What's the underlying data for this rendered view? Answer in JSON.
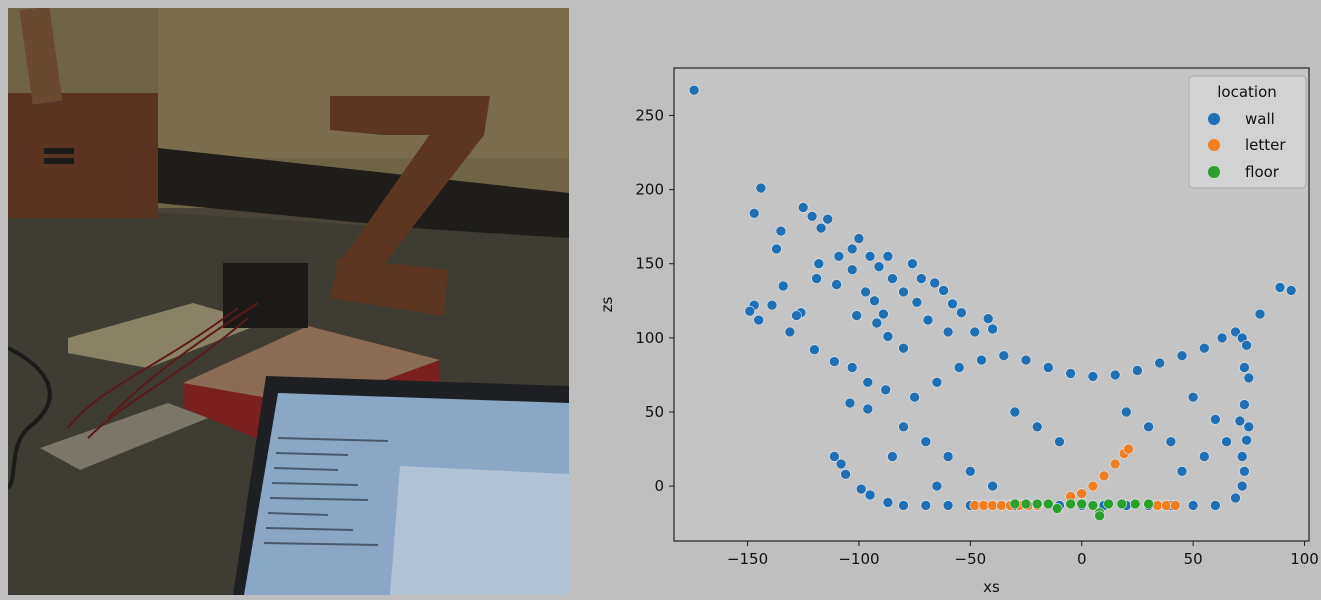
{
  "chart_data": {
    "type": "scatter",
    "xlabel": "xs",
    "ylabel": "zs",
    "xlim": [
      -183,
      102
    ],
    "ylim": [
      -37,
      282
    ],
    "x_ticks": [
      "−150",
      "−100",
      "−50",
      "0",
      "50",
      "100"
    ],
    "y_ticks": [
      "0",
      "50",
      "100",
      "150",
      "200",
      "250"
    ],
    "legend": {
      "title": "location",
      "position": "top-right",
      "entries": [
        "wall",
        "letter",
        "floor"
      ]
    },
    "colors": {
      "wall": "#1f6fb4",
      "letter": "#ef7f22",
      "floor": "#2aa02c"
    },
    "series": [
      {
        "name": "wall",
        "points": [
          [
            -174,
            267
          ],
          [
            -144,
            201
          ],
          [
            -147,
            184
          ],
          [
            -125,
            188
          ],
          [
            -121,
            182
          ],
          [
            -114,
            180
          ],
          [
            -135,
            172
          ],
          [
            -117,
            174
          ],
          [
            -100,
            167
          ],
          [
            -137,
            160
          ],
          [
            -103,
            160
          ],
          [
            -95,
            155
          ],
          [
            -118,
            150
          ],
          [
            -109,
            155
          ],
          [
            -87,
            155
          ],
          [
            -91,
            148
          ],
          [
            -76,
            150
          ],
          [
            -103,
            146
          ],
          [
            -119,
            140
          ],
          [
            -110,
            136
          ],
          [
            -85,
            140
          ],
          [
            -72,
            140
          ],
          [
            -134,
            135
          ],
          [
            -66,
            137
          ],
          [
            -97,
            131
          ],
          [
            -80,
            131
          ],
          [
            -62,
            132
          ],
          [
            -147,
            122
          ],
          [
            -139,
            122
          ],
          [
            -126,
            117
          ],
          [
            -93,
            125
          ],
          [
            -74,
            124
          ],
          [
            -58,
            123
          ],
          [
            -149,
            118
          ],
          [
            -145,
            112
          ],
          [
            -128,
            115
          ],
          [
            -101,
            115
          ],
          [
            -89,
            116
          ],
          [
            -54,
            117
          ],
          [
            -42,
            113
          ],
          [
            -92,
            110
          ],
          [
            -69,
            112
          ],
          [
            -131,
            104
          ],
          [
            -87,
            101
          ],
          [
            -60,
            104
          ],
          [
            -48,
            104
          ],
          [
            -40,
            106
          ],
          [
            -120,
            92
          ],
          [
            -80,
            93
          ],
          [
            -111,
            84
          ],
          [
            -103,
            80
          ],
          [
            -96,
            70
          ],
          [
            -88,
            65
          ],
          [
            -104,
            56
          ],
          [
            -96,
            52
          ],
          [
            -111,
            20
          ],
          [
            -108,
            15
          ],
          [
            -106,
            8
          ],
          [
            -99,
            -2
          ],
          [
            -95,
            -6
          ],
          [
            -87,
            -11
          ],
          [
            -80,
            -13
          ],
          [
            -70,
            -13
          ],
          [
            -60,
            -13
          ],
          [
            -50,
            -13
          ],
          [
            -40,
            -13
          ],
          [
            -30,
            -13
          ],
          [
            -20,
            -13
          ],
          [
            -10,
            -13
          ],
          [
            0,
            -13
          ],
          [
            10,
            -13
          ],
          [
            20,
            -13
          ],
          [
            30,
            -13
          ],
          [
            40,
            -13
          ],
          [
            50,
            -13
          ],
          [
            60,
            -13
          ],
          [
            -75,
            60
          ],
          [
            -65,
            70
          ],
          [
            -55,
            80
          ],
          [
            -45,
            85
          ],
          [
            -35,
            88
          ],
          [
            -25,
            85
          ],
          [
            -15,
            80
          ],
          [
            -5,
            76
          ],
          [
            5,
            74
          ],
          [
            15,
            75
          ],
          [
            25,
            78
          ],
          [
            35,
            83
          ],
          [
            45,
            88
          ],
          [
            55,
            93
          ],
          [
            63,
            100
          ],
          [
            69,
            104
          ],
          [
            72,
            100
          ],
          [
            74,
            95
          ],
          [
            73,
            80
          ],
          [
            75,
            73
          ],
          [
            73,
            55
          ],
          [
            71,
            44
          ],
          [
            75,
            40
          ],
          [
            74,
            31
          ],
          [
            72,
            20
          ],
          [
            73,
            10
          ],
          [
            72,
            0
          ],
          [
            69,
            -8
          ],
          [
            -80,
            40
          ],
          [
            -70,
            30
          ],
          [
            -60,
            20
          ],
          [
            -50,
            10
          ],
          [
            -40,
            0
          ],
          [
            -30,
            50
          ],
          [
            -20,
            40
          ],
          [
            -10,
            30
          ],
          [
            20,
            50
          ],
          [
            30,
            40
          ],
          [
            40,
            30
          ],
          [
            50,
            60
          ],
          [
            60,
            45
          ],
          [
            -85,
            20
          ],
          [
            -65,
            0
          ],
          [
            45,
            10
          ],
          [
            55,
            20
          ],
          [
            65,
            30
          ],
          [
            80,
            116
          ],
          [
            89,
            134
          ],
          [
            94,
            132
          ]
        ]
      },
      {
        "name": "letter",
        "points": [
          [
            -48,
            -13
          ],
          [
            -44,
            -13
          ],
          [
            -40,
            -13
          ],
          [
            -36,
            -13
          ],
          [
            -32,
            -13
          ],
          [
            -28,
            -13
          ],
          [
            -24,
            -13
          ],
          [
            -20,
            -13
          ],
          [
            -5,
            -7
          ],
          [
            0,
            -5
          ],
          [
            5,
            0
          ],
          [
            10,
            7
          ],
          [
            15,
            15
          ],
          [
            19,
            22
          ],
          [
            21,
            25
          ],
          [
            34,
            -13
          ],
          [
            38,
            -13
          ],
          [
            42,
            -13
          ]
        ]
      },
      {
        "name": "floor",
        "points": [
          [
            -30,
            -12
          ],
          [
            -25,
            -12
          ],
          [
            -20,
            -12
          ],
          [
            -15,
            -12
          ],
          [
            -11,
            -15
          ],
          [
            -5,
            -12
          ],
          [
            0,
            -12
          ],
          [
            5,
            -13
          ],
          [
            8,
            -18
          ],
          [
            8,
            -20
          ],
          [
            12,
            -12
          ],
          [
            18,
            -12
          ],
          [
            24,
            -12
          ],
          [
            30,
            -12
          ]
        ]
      }
    ]
  }
}
